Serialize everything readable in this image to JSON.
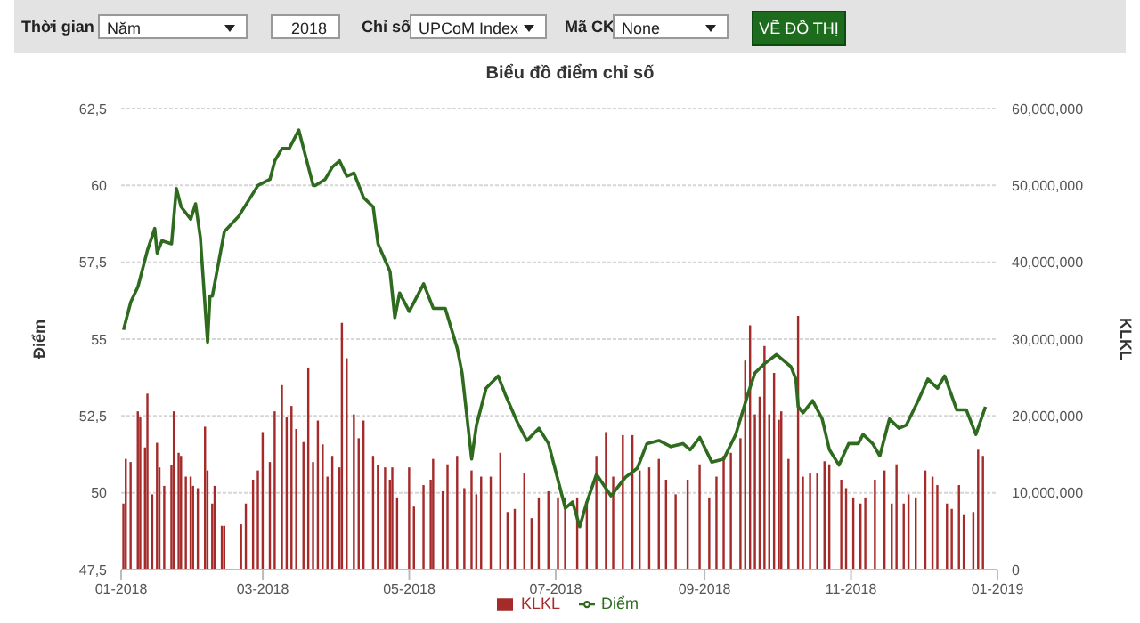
{
  "chart_data": {
    "type": "bar",
    "title": "Biểu đồ điểm chỉ số",
    "ylabel": "Điểm",
    "y2label": "KLKL",
    "annotations": [
      "Thời gian",
      "Năm",
      "2018",
      "Chỉ số",
      "UPCoM Index",
      "Mã CK",
      "None",
      "VẼ ĐỒ THỊ"
    ],
    "series": [
      {
        "name": "KLKL",
        "axis": "y2",
        "color": "#a52a2a",
        "x": [
          "2018-01-02",
          "2018-01-03",
          "2018-01-05",
          "2018-01-08",
          "2018-01-09",
          "2018-01-11",
          "2018-01-12",
          "2018-01-14",
          "2018-01-16",
          "2018-01-17",
          "2018-01-19",
          "2018-01-22",
          "2018-01-23",
          "2018-01-25",
          "2018-01-26",
          "2018-01-28",
          "2018-01-30",
          "2018-01-31",
          "2018-02-02",
          "2018-02-05",
          "2018-02-06",
          "2018-02-08",
          "2018-02-09",
          "2018-02-12",
          "2018-02-13",
          "2018-02-20",
          "2018-02-22",
          "2018-02-25",
          "2018-02-27",
          "2018-03-01",
          "2018-03-04",
          "2018-03-06",
          "2018-03-09",
          "2018-03-11",
          "2018-03-13",
          "2018-03-15",
          "2018-03-18",
          "2018-03-20",
          "2018-03-22",
          "2018-03-24",
          "2018-03-26",
          "2018-03-28",
          "2018-03-30",
          "2018-04-02",
          "2018-04-03",
          "2018-04-05",
          "2018-04-08",
          "2018-04-10",
          "2018-04-12",
          "2018-04-16",
          "2018-04-18",
          "2018-04-21",
          "2018-04-23",
          "2018-04-24",
          "2018-04-26",
          "2018-05-01",
          "2018-05-03",
          "2018-05-07",
          "2018-05-10",
          "2018-05-11",
          "2018-05-15",
          "2018-05-17",
          "2018-05-21",
          "2018-05-24",
          "2018-05-27",
          "2018-05-29",
          "2018-05-31",
          "2018-06-04",
          "2018-06-08",
          "2018-06-11",
          "2018-06-14",
          "2018-06-18",
          "2018-06-21",
          "2018-06-24",
          "2018-06-28",
          "2018-07-02",
          "2018-07-05",
          "2018-07-10",
          "2018-07-14",
          "2018-07-18",
          "2018-07-22",
          "2018-07-25",
          "2018-07-29",
          "2018-08-02",
          "2018-08-05",
          "2018-08-09",
          "2018-08-13",
          "2018-08-16",
          "2018-08-20",
          "2018-08-25",
          "2018-08-30",
          "2018-09-03",
          "2018-09-06",
          "2018-09-09",
          "2018-09-12",
          "2018-09-16",
          "2018-09-18",
          "2018-09-20",
          "2018-09-22",
          "2018-09-24",
          "2018-09-26",
          "2018-09-28",
          "2018-09-30",
          "2018-10-02",
          "2018-10-03",
          "2018-10-06",
          "2018-10-10",
          "2018-10-12",
          "2018-10-15",
          "2018-10-18",
          "2018-10-21",
          "2018-10-23",
          "2018-10-28",
          "2018-10-30",
          "2018-11-02",
          "2018-11-05",
          "2018-11-07",
          "2018-11-11",
          "2018-11-15",
          "2018-11-18",
          "2018-11-20",
          "2018-11-23",
          "2018-11-25",
          "2018-11-28",
          "2018-12-02",
          "2018-12-05",
          "2018-12-07",
          "2018-12-11",
          "2018-12-13",
          "2018-12-16",
          "2018-12-18",
          "2018-12-22",
          "2018-12-24",
          "2018-12-26"
        ],
        "values": [
          8600000,
          14400000,
          14000000,
          20600000,
          19800000,
          15900000,
          22900000,
          9800000,
          16500000,
          13300000,
          10900000,
          13600000,
          20600000,
          15200000,
          14800000,
          12100000,
          12100000,
          10900000,
          10600000,
          18600000,
          12900000,
          8600000,
          10900000,
          5700000,
          5700000,
          5900000,
          8600000,
          11700000,
          12900000,
          17900000,
          14000000,
          20600000,
          24000000,
          19800000,
          21300000,
          18300000,
          16600000,
          26300000,
          14000000,
          19400000,
          16300000,
          12100000,
          14800000,
          13300000,
          32100000,
          27500000,
          20200000,
          17100000,
          19400000,
          14800000,
          13600000,
          13300000,
          11700000,
          13300000,
          9400000,
          13300000,
          8200000,
          11000000,
          11700000,
          14400000,
          10200000,
          13700000,
          14800000,
          10600000,
          12900000,
          9800000,
          12100000,
          12100000,
          15200000,
          7500000,
          7900000,
          12500000,
          6700000,
          9400000,
          10200000,
          9400000,
          9400000,
          9400000,
          8600000,
          14800000,
          17900000,
          12100000,
          17500000,
          17500000,
          12900000,
          13300000,
          14400000,
          11700000,
          9800000,
          11700000,
          13700000,
          9400000,
          12100000,
          14800000,
          15200000,
          17100000,
          27200000,
          31800000,
          20200000,
          22500000,
          29100000,
          20200000,
          25600000,
          19500000,
          20600000,
          14400000,
          33000000,
          12100000,
          12500000,
          12500000,
          14100000,
          13700000,
          11700000,
          10600000,
          9400000,
          8600000,
          9400000,
          11700000,
          12900000,
          8600000,
          13700000,
          8600000,
          9800000,
          9400000,
          12900000,
          12100000,
          11000000,
          8600000,
          7900000,
          11000000,
          7100000,
          7500000,
          15600000,
          14800000
        ]
      },
      {
        "name": "Điểm",
        "type": "line",
        "color": "#2e6b1f",
        "x": [
          "2018-01-02",
          "2018-01-05",
          "2018-01-08",
          "2018-01-12",
          "2018-01-15",
          "2018-01-16",
          "2018-01-18",
          "2018-01-22",
          "2018-01-24",
          "2018-01-26",
          "2018-01-30",
          "2018-02-01",
          "2018-02-03",
          "2018-02-06",
          "2018-02-07",
          "2018-02-08",
          "2018-02-13",
          "2018-02-19",
          "2018-02-27",
          "2018-03-04",
          "2018-03-06",
          "2018-03-09",
          "2018-03-12",
          "2018-03-16",
          "2018-03-22",
          "2018-03-23",
          "2018-03-27",
          "2018-03-30",
          "2018-04-02",
          "2018-04-05",
          "2018-04-08",
          "2018-04-12",
          "2018-04-16",
          "2018-04-18",
          "2018-04-23",
          "2018-04-25",
          "2018-04-27",
          "2018-05-01",
          "2018-05-07",
          "2018-05-11",
          "2018-05-16",
          "2018-05-21",
          "2018-05-23",
          "2018-05-27",
          "2018-05-29",
          "2018-06-02",
          "2018-06-07",
          "2018-06-10",
          "2018-06-15",
          "2018-06-19",
          "2018-06-24",
          "2018-06-28",
          "2018-07-03",
          "2018-07-05",
          "2018-07-08",
          "2018-07-11",
          "2018-07-14",
          "2018-07-18",
          "2018-07-24",
          "2018-07-30",
          "2018-08-04",
          "2018-08-08",
          "2018-08-13",
          "2018-08-18",
          "2018-08-23",
          "2018-08-26",
          "2018-08-30",
          "2018-09-04",
          "2018-09-09",
          "2018-09-14",
          "2018-09-19",
          "2018-09-22",
          "2018-09-26",
          "2018-10-01",
          "2018-10-07",
          "2018-10-09",
          "2018-10-10",
          "2018-10-12",
          "2018-10-16",
          "2018-10-20",
          "2018-10-23",
          "2018-10-27",
          "2018-10-31",
          "2018-11-04",
          "2018-11-06",
          "2018-11-10",
          "2018-11-13",
          "2018-11-17",
          "2018-11-21",
          "2018-11-24",
          "2018-11-29",
          "2018-12-03",
          "2018-12-07",
          "2018-12-10",
          "2018-12-15",
          "2018-12-19",
          "2018-12-23",
          "2018-12-27"
        ],
        "values": [
          55.3,
          56.2,
          56.7,
          57.9,
          58.6,
          57.8,
          58.2,
          58.1,
          59.9,
          59.3,
          58.9,
          59.4,
          58.3,
          54.9,
          56.4,
          56.4,
          58.5,
          59.0,
          60.0,
          60.2,
          60.8,
          61.2,
          61.2,
          61.8,
          60.0,
          60.0,
          60.2,
          60.6,
          60.8,
          60.3,
          60.4,
          59.6,
          59.3,
          58.1,
          57.2,
          55.7,
          56.5,
          55.9,
          56.8,
          56.0,
          56.0,
          54.7,
          53.9,
          51.1,
          52.2,
          53.4,
          53.8,
          53.2,
          52.3,
          51.7,
          52.1,
          51.6,
          50.1,
          49.5,
          49.7,
          48.9,
          49.7,
          50.6,
          49.9,
          50.5,
          50.8,
          51.6,
          51.7,
          51.5,
          51.6,
          51.4,
          51.8,
          51.0,
          51.1,
          51.9,
          53.2,
          53.9,
          54.2,
          54.5,
          54.1,
          53.7,
          52.8,
          52.6,
          53.0,
          52.4,
          51.4,
          50.9,
          51.6,
          51.6,
          51.9,
          51.6,
          51.2,
          52.4,
          52.1,
          52.2,
          53.0,
          53.7,
          53.4,
          53.8,
          52.7,
          52.7,
          51.9,
          52.8
        ]
      }
    ],
    "xlim": [
      "2018-01-01",
      "2019-01-01"
    ],
    "xticks": [
      {
        "value": "2018-01-01",
        "label": "01-2018"
      },
      {
        "value": "2018-03-01",
        "label": "03-2018"
      },
      {
        "value": "2018-05-01",
        "label": "05-2018"
      },
      {
        "value": "2018-07-01",
        "label": "07-2018"
      },
      {
        "value": "2018-09-01",
        "label": "09-2018"
      },
      {
        "value": "2018-11-01",
        "label": "11-2018"
      },
      {
        "value": "2019-01-01",
        "label": "01-2019"
      }
    ],
    "ylim": [
      47.5,
      62.5
    ],
    "yticks": [
      {
        "value": 47.5,
        "label": "47,5"
      },
      50,
      {
        "value": 52.5,
        "label": "52,5"
      },
      55,
      {
        "value": 57.5,
        "label": "57,5"
      },
      60,
      {
        "value": 62.5,
        "label": "62,5"
      }
    ],
    "y2lim": [
      0,
      60000000
    ],
    "y2ticks": [
      0,
      {
        "value": 10000000,
        "label": "10,000,000"
      },
      {
        "value": 20000000,
        "label": "20,000,000"
      },
      {
        "value": 30000000,
        "label": "30,000,000"
      },
      {
        "value": 40000000,
        "label": "40,000,000"
      },
      {
        "value": 50000000,
        "label": "50,000,000"
      },
      {
        "value": 60000000,
        "label": "60,000,000"
      }
    ],
    "grid": "y",
    "legend": "bottom"
  }
}
